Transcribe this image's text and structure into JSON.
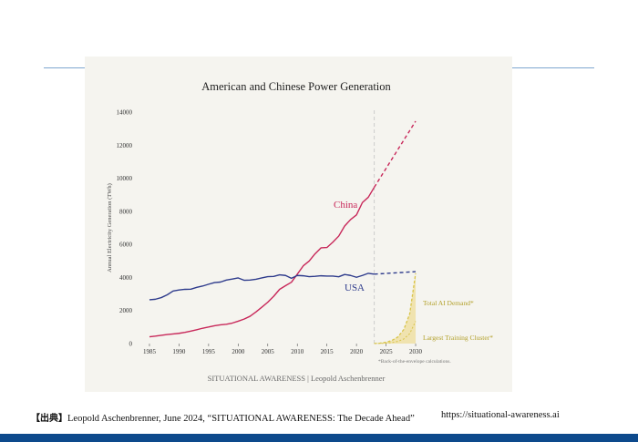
{
  "chart_data": {
    "type": "line",
    "title": "American and Chinese Power Generation",
    "ylabel": "Annual Electricity Generation (TWh)",
    "xlabel": "",
    "xlim": [
      1983,
      2032
    ],
    "ylim": [
      0,
      14000
    ],
    "x_ticks": [
      "1985",
      "1990",
      "1995",
      "2000",
      "2005",
      "2010",
      "2015",
      "2020",
      "2025",
      "2030"
    ],
    "y_ticks": [
      "0",
      "2000",
      "4000",
      "6000",
      "8000",
      "10000",
      "12000",
      "14000"
    ],
    "projection_start": 2023,
    "colors": {
      "china": "#c8285a",
      "usa": "#2e3b8c",
      "ai": "#d8c44a",
      "ai_fill": "#eedd9a",
      "projection_line": "#cccccc"
    },
    "series": [
      {
        "name": "China",
        "color": "#c8285a",
        "x": [
          1985,
          1986,
          1987,
          1988,
          1989,
          1990,
          1991,
          1992,
          1993,
          1994,
          1995,
          1996,
          1997,
          1998,
          1999,
          2000,
          2001,
          2002,
          2003,
          2004,
          2005,
          2006,
          2007,
          2008,
          2009,
          2010,
          2011,
          2012,
          2013,
          2014,
          2015,
          2016,
          2017,
          2018,
          2019,
          2020,
          2021,
          2022,
          2023
        ],
        "values": [
          410,
          450,
          500,
          545,
          585,
          620,
          680,
          755,
          840,
          930,
          1000,
          1080,
          1135,
          1165,
          1240,
          1355,
          1480,
          1650,
          1910,
          2200,
          2500,
          2860,
          3280,
          3500,
          3710,
          4200,
          4700,
          4990,
          5430,
          5790,
          5810,
          6130,
          6500,
          7110,
          7500,
          7780,
          8530,
          8850,
          9450
        ]
      },
      {
        "name": "USA",
        "color": "#2e3b8c",
        "x": [
          1985,
          1986,
          1987,
          1988,
          1989,
          1990,
          1991,
          1992,
          1993,
          1994,
          1995,
          1996,
          1997,
          1998,
          1999,
          2000,
          2001,
          2002,
          2003,
          2004,
          2005,
          2006,
          2007,
          2008,
          2009,
          2010,
          2011,
          2012,
          2013,
          2014,
          2015,
          2016,
          2017,
          2018,
          2019,
          2020,
          2021,
          2022,
          2023
        ],
        "values": [
          2650,
          2680,
          2780,
          2950,
          3180,
          3240,
          3280,
          3290,
          3400,
          3480,
          3590,
          3690,
          3720,
          3840,
          3900,
          3970,
          3830,
          3840,
          3890,
          3970,
          4050,
          4060,
          4160,
          4120,
          3950,
          4120,
          4100,
          4050,
          4070,
          4100,
          4080,
          4080,
          4040,
          4180,
          4120,
          4010,
          4120,
          4250,
          4200
        ]
      }
    ],
    "projections": [
      {
        "name": "China",
        "x": [
          2023,
          2030
        ],
        "values": [
          9450,
          13450
        ]
      },
      {
        "name": "USA",
        "x": [
          2023,
          2030
        ],
        "values": [
          4200,
          4350
        ]
      }
    ],
    "ai_demand": {
      "name": "Total AI Demand*",
      "x": [
        2023,
        2024,
        2025,
        2026,
        2027,
        2028,
        2029,
        2030
      ],
      "values": [
        5,
        25,
        80,
        190,
        400,
        850,
        1800,
        4250
      ]
    },
    "training_cluster": {
      "name": "Largest Training Cluster*",
      "x": [
        2023,
        2024,
        2025,
        2026,
        2027,
        2028,
        2029,
        2030
      ],
      "values": [
        0,
        8,
        25,
        60,
        130,
        280,
        600,
        1350
      ]
    },
    "series_labels": {
      "china": "China",
      "usa": "USA"
    },
    "annotations": {
      "total_ai": "Total AI Demand*",
      "training": "Largest Training Cluster*",
      "footnote": "*Back-of-the-envelope calculations."
    },
    "credit": "SITUATIONAL AWARENESS | Leopold Aschenbrenner"
  },
  "caption": {
    "source_label": "【出典】",
    "citation": "Leopold Aschenbrenner, June 2024, “SITUATIONAL AWARENESS: The Decade Ahead”",
    "url": "https://situational-awareness.ai"
  }
}
